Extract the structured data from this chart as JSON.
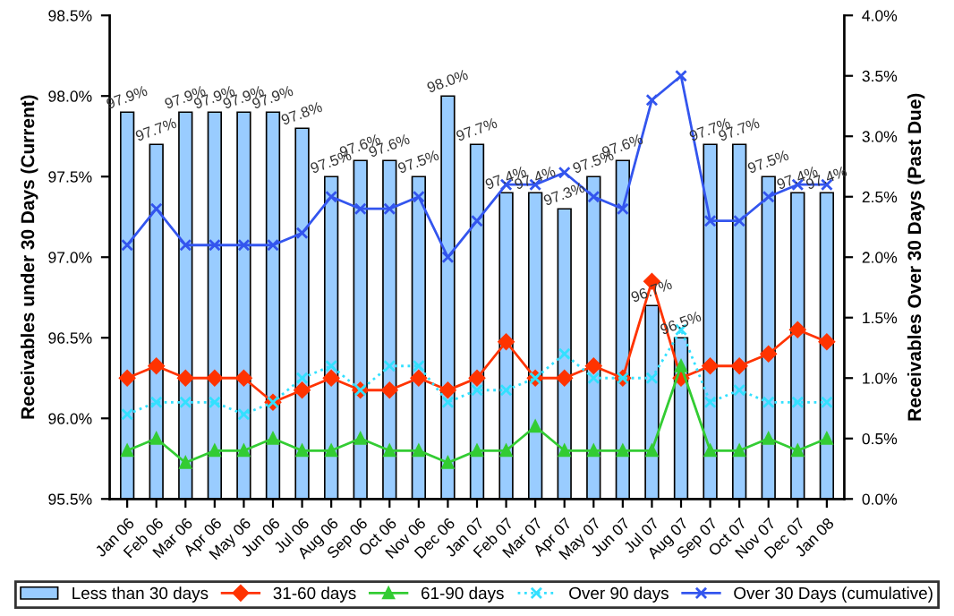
{
  "chart_data": {
    "type": "bar",
    "ylabel": "Receivables under 30 Days (Current)",
    "y2label": "Receivables Over 30 Days (Past Due)",
    "categories": [
      "Jan 06",
      "Feb 06",
      "Mar 06",
      "Apr 06",
      "May 06",
      "Jun 06",
      "Jul 06",
      "Aug 06",
      "Sep 06",
      "Oct 06",
      "Nov 06",
      "Dec 06",
      "Jan 07",
      "Feb 07",
      "Mar 07",
      "Apr 07",
      "May 07",
      "Jun 07",
      "Jul 07",
      "Aug 07",
      "Sep 07",
      "Oct 07",
      "Nov 07",
      "Dec 07",
      "Jan 08"
    ],
    "series": [
      {
        "name": "Less than 30 days",
        "color": "#99ccff",
        "values": [
          97.9,
          97.7,
          97.9,
          97.9,
          97.9,
          97.9,
          97.8,
          97.5,
          97.6,
          97.6,
          97.5,
          98.0,
          97.7,
          97.4,
          97.4,
          97.3,
          97.5,
          97.6,
          96.7,
          96.5,
          97.7,
          97.7,
          97.5,
          97.4,
          97.4
        ],
        "value_labels": [
          "97.9%",
          "97.7%",
          "97.9%",
          "97.9%",
          "97.9%",
          "97.9%",
          "97.8%",
          "97.5%",
          "97.6%",
          "97.6%",
          "97.5%",
          "98.0%",
          "97.7%",
          "97.4%",
          "97.4%",
          "97.3%",
          "97.5%",
          "97.6%",
          "96.7%",
          "96.5%",
          "97.7%",
          "97.7%",
          "97.5%",
          "97.4%",
          "97.4%"
        ]
      },
      {
        "name": "31-60 days",
        "type": "line",
        "axis": "y2",
        "color": "#ff3300",
        "marker": "diamond",
        "line_style": "solid",
        "values": [
          1.0,
          1.1,
          1.0,
          1.0,
          1.0,
          0.8,
          0.9,
          1.0,
          0.9,
          0.9,
          1.0,
          0.9,
          1.0,
          1.3,
          1.0,
          1.0,
          1.1,
          1.0,
          1.8,
          1.0,
          1.1,
          1.1,
          1.2,
          1.4,
          1.3
        ]
      },
      {
        "name": "61-90 days",
        "type": "line",
        "axis": "y2",
        "color": "#33cc33",
        "marker": "triangle",
        "line_style": "solid",
        "values": [
          0.4,
          0.5,
          0.3,
          0.4,
          0.4,
          0.5,
          0.4,
          0.4,
          0.5,
          0.4,
          0.4,
          0.3,
          0.4,
          0.4,
          0.6,
          0.4,
          0.4,
          0.4,
          0.4,
          1.1,
          0.4,
          0.4,
          0.5,
          0.4,
          0.5
        ]
      },
      {
        "name": "Over 90 days",
        "type": "line",
        "axis": "y2",
        "color": "#33e0ff",
        "marker": "cross",
        "line_style": "dotted",
        "values": [
          0.7,
          0.8,
          0.8,
          0.8,
          0.7,
          0.8,
          1.0,
          1.1,
          0.9,
          1.1,
          1.1,
          0.8,
          0.9,
          0.9,
          1.0,
          1.2,
          1.0,
          1.0,
          1.0,
          1.4,
          0.8,
          0.9,
          0.8,
          0.8,
          0.8
        ]
      },
      {
        "name": "Over 30 Days (cumulative)",
        "type": "line",
        "axis": "y2",
        "color": "#3355ee",
        "marker": "cross",
        "line_style": "solid",
        "values": [
          2.1,
          2.4,
          2.1,
          2.1,
          2.1,
          2.1,
          2.2,
          2.5,
          2.4,
          2.4,
          2.5,
          2.0,
          2.3,
          2.6,
          2.6,
          2.7,
          2.5,
          2.4,
          3.3,
          3.5,
          2.3,
          2.3,
          2.5,
          2.6,
          2.6
        ]
      }
    ],
    "ylim": [
      95.5,
      98.5
    ],
    "yticks": [
      {
        "value": 95.5,
        "label": "95.5%"
      },
      {
        "value": 96.0,
        "label": "96.0%"
      },
      {
        "value": 96.5,
        "label": "96.5%"
      },
      {
        "value": 97.0,
        "label": "97.0%"
      },
      {
        "value": 97.5,
        "label": "97.5%"
      },
      {
        "value": 98.0,
        "label": "98.0%"
      },
      {
        "value": 98.5,
        "label": "98.5%"
      }
    ],
    "y2lim": [
      0,
      4
    ],
    "y2ticks": [
      {
        "value": 0,
        "label": "0.0%"
      },
      {
        "value": 0.5,
        "label": "0.5%"
      },
      {
        "value": 1.0,
        "label": "1.0%"
      },
      {
        "value": 1.5,
        "label": "1.5%"
      },
      {
        "value": 2.0,
        "label": "2.0%"
      },
      {
        "value": 2.5,
        "label": "2.5%"
      },
      {
        "value": 3.0,
        "label": "3.0%"
      },
      {
        "value": 3.5,
        "label": "3.5%"
      },
      {
        "value": 4.0,
        "label": "4.0%"
      }
    ],
    "grid": false,
    "legend": "bottom"
  }
}
